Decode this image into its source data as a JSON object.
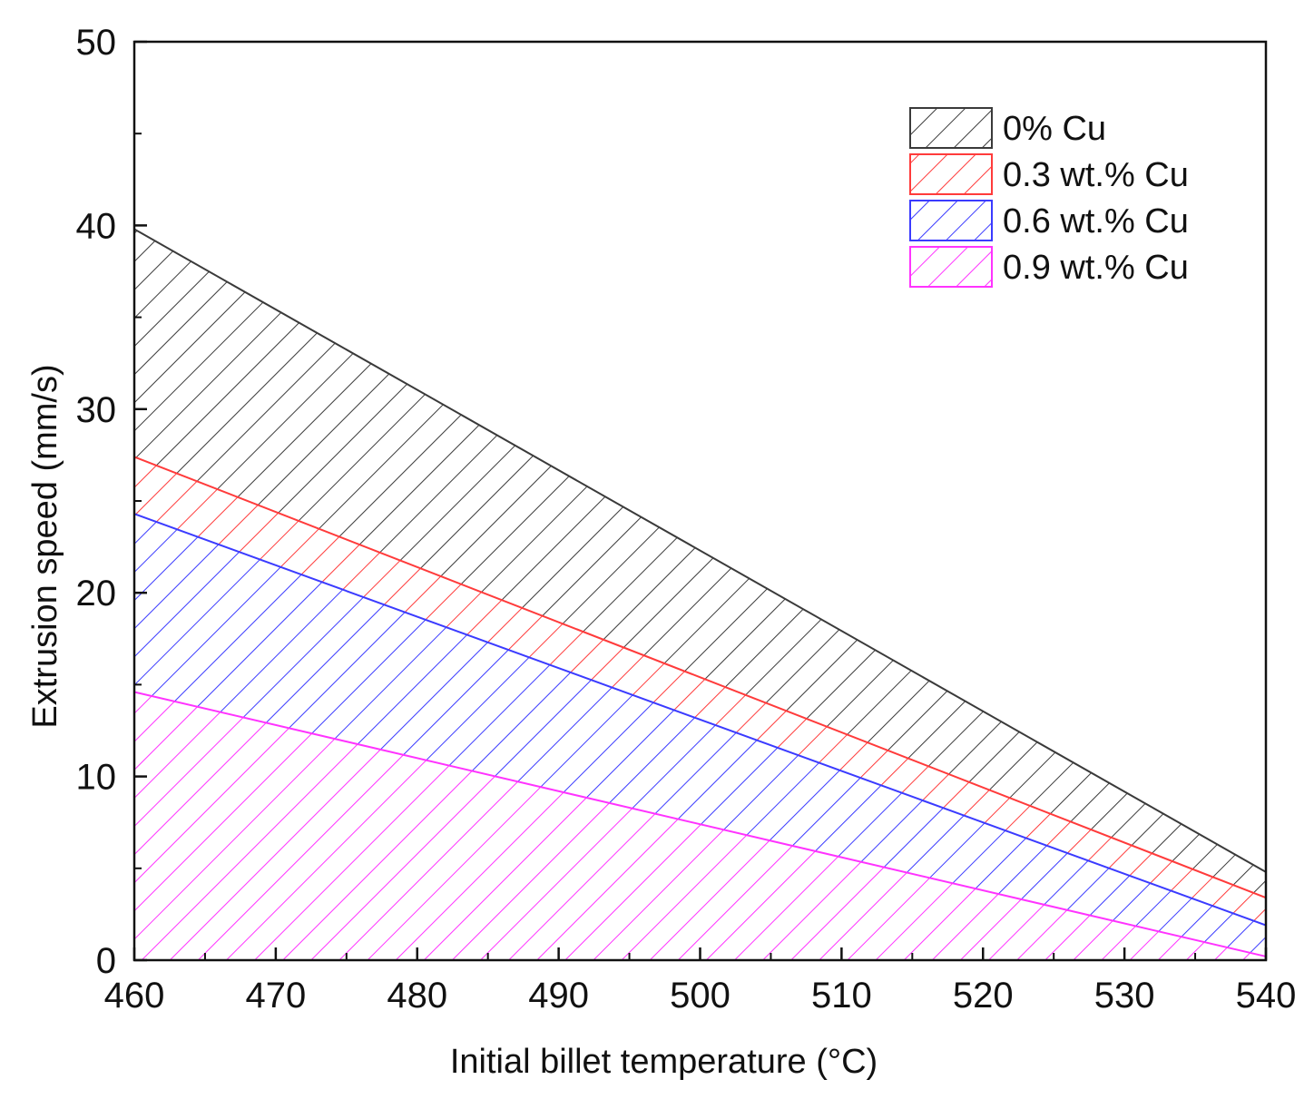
{
  "chart_data": {
    "type": "area",
    "xlabel": "Initial billet temperature (°C)",
    "ylabel": "Extrusion speed (mm/s)",
    "xlim": [
      460,
      540
    ],
    "ylim": [
      0,
      50
    ],
    "x_ticks": [
      460,
      470,
      480,
      490,
      500,
      510,
      520,
      530,
      540
    ],
    "y_ticks": [
      0,
      10,
      20,
      30,
      40,
      50
    ],
    "grid": false,
    "legend_position": "top-right",
    "hatch": "diagonal",
    "series": [
      {
        "name": "0% Cu",
        "color": "#3a3a3a",
        "x": [
          460,
          540
        ],
        "y": [
          39.8,
          4.8
        ]
      },
      {
        "name": "0.3 wt.% Cu",
        "color": "#ff3b3b",
        "x": [
          460,
          540
        ],
        "y": [
          27.4,
          3.4
        ]
      },
      {
        "name": "0.6 wt.% Cu",
        "color": "#3b3bff",
        "x": [
          460,
          540
        ],
        "y": [
          24.3,
          1.9
        ]
      },
      {
        "name": "0.9 wt.% Cu",
        "color": "#ff33ff",
        "x": [
          460,
          540
        ],
        "y": [
          14.6,
          0.2
        ]
      }
    ]
  }
}
